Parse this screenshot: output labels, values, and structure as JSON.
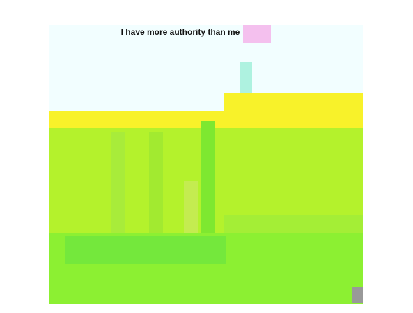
{
  "header": {
    "title": "I have more authority than me"
  }
}
